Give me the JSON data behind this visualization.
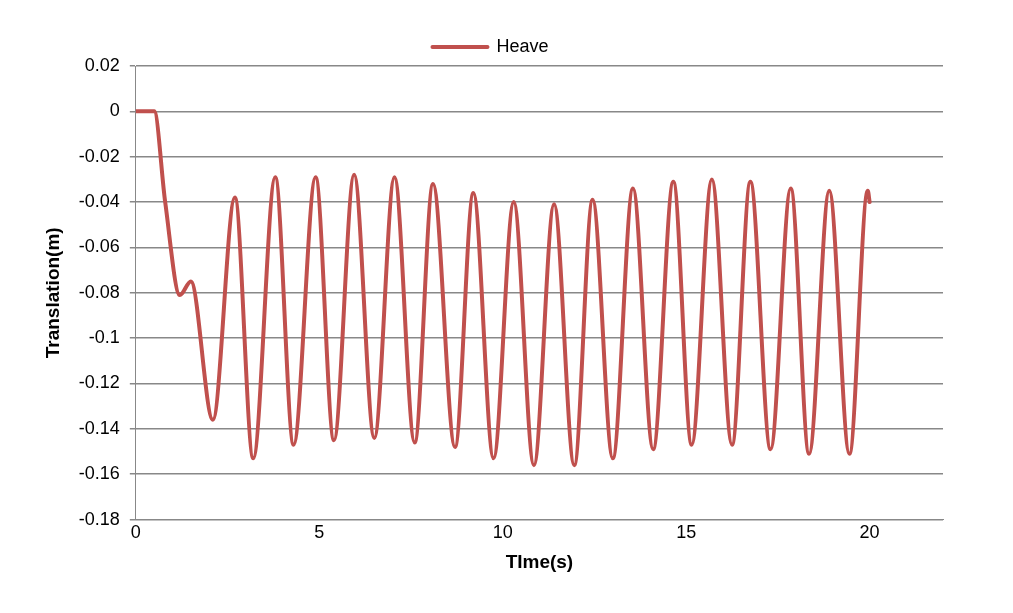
{
  "chart_data": {
    "type": "line",
    "xlabel": "TIme(s)",
    "ylabel": "Translation(m)",
    "xlim": [
      0,
      22
    ],
    "xticks": [
      0,
      5,
      10,
      15,
      20
    ],
    "ylim": [
      -0.18,
      0.02
    ],
    "yticks": [
      -0.18,
      -0.16,
      -0.14,
      -0.12,
      -0.1,
      -0.08,
      -0.06,
      -0.04,
      -0.02,
      0,
      0.02
    ],
    "grid": "y",
    "legend": "top",
    "marker": "none",
    "line_style": "solid",
    "x": [
      0,
      0.5,
      0.8,
      1.2,
      1.5,
      2.1,
      2.7,
      3.2,
      3.8,
      4.3,
      4.9,
      5.4,
      5.95,
      6.5,
      7.05,
      7.6,
      8.1,
      8.7,
      9.2,
      9.75,
      10.3,
      10.85,
      11.4,
      11.95,
      12.45,
      13.0,
      13.55,
      14.1,
      14.65,
      15.15,
      15.7,
      16.25,
      16.75,
      17.3,
      17.85,
      18.35,
      18.9,
      19.45,
      19.95,
      20
    ],
    "series": [
      {
        "name": "Heave",
        "color": "#c0504d",
        "values": [
          0,
          0,
          -0.04,
          -0.081,
          -0.075,
          -0.136,
          -0.038,
          -0.153,
          -0.029,
          -0.147,
          -0.029,
          -0.145,
          -0.028,
          -0.144,
          -0.029,
          -0.146,
          -0.032,
          -0.148,
          -0.036,
          -0.153,
          -0.04,
          -0.156,
          -0.041,
          -0.156,
          -0.039,
          -0.153,
          -0.034,
          -0.149,
          -0.031,
          -0.147,
          -0.03,
          -0.147,
          -0.031,
          -0.149,
          -0.034,
          -0.151,
          -0.035,
          -0.151,
          -0.035,
          -0.04
        ]
      }
    ]
  }
}
